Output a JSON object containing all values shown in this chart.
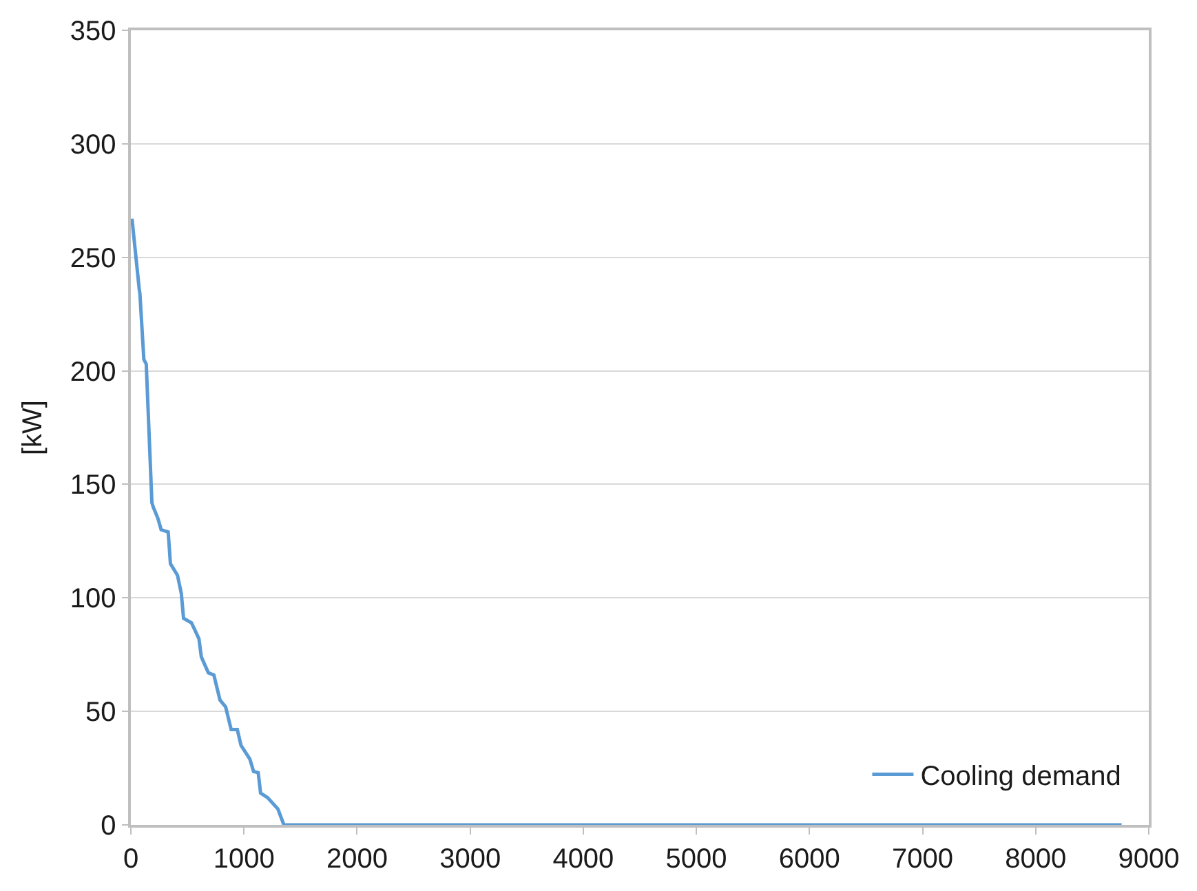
{
  "chart_data": {
    "type": "line",
    "ylabel": "[kW]",
    "xlim": [
      0,
      9000
    ],
    "ylim": [
      0,
      350
    ],
    "xticks": [
      0,
      1000,
      2000,
      3000,
      4000,
      5000,
      6000,
      7000,
      8000,
      9000
    ],
    "yticks": [
      0,
      50,
      100,
      150,
      200,
      250,
      300,
      350
    ],
    "grid": "y",
    "legend": "bottom right",
    "marker": "none",
    "line_style": "solid",
    "series": [
      {
        "name": "Cooling demand",
        "color": "#5b9bd5",
        "x": [
          10,
          74,
          80,
          115,
          136,
          186,
          198,
          239,
          268,
          330,
          350,
          412,
          446,
          466,
          536,
          602,
          623,
          685,
          734,
          788,
          838,
          887,
          941,
          974,
          1052,
          1085,
          1126,
          1147,
          1209,
          1300,
          1353,
          8760
        ],
        "values": [
          267,
          236,
          234,
          205,
          203,
          142,
          140,
          135,
          130,
          129,
          115,
          110,
          102,
          91,
          89,
          82,
          74,
          67,
          66,
          55,
          52,
          42,
          42,
          35,
          29,
          23.5,
          23,
          14,
          12,
          7,
          0,
          0
        ]
      }
    ]
  }
}
